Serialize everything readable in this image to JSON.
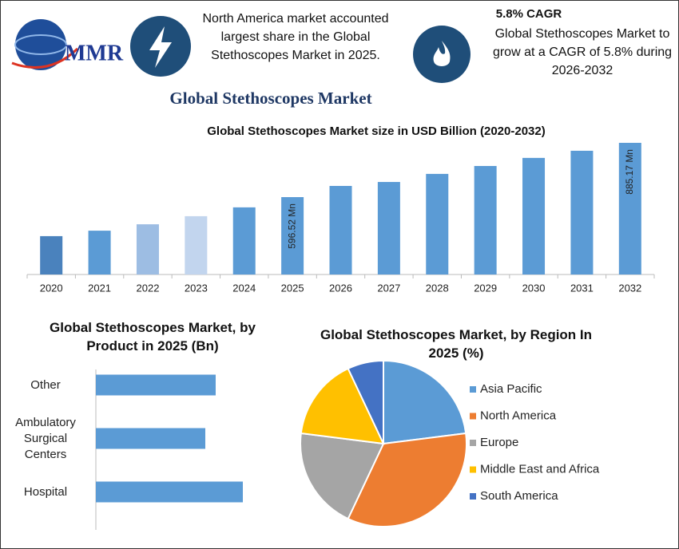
{
  "header": {
    "logo": "MMR",
    "note": "North America market accounted largest share in the Global Stethoscopes Market in 2025.",
    "cagr_title": "5.8% CAGR",
    "cagr_text": "Global Stethoscopes Market to grow at a CAGR of 5.8% during 2026-2032",
    "title": "Global Stethoscopes Market"
  },
  "chart_data": [
    {
      "type": "bar",
      "title": "Global Stethoscopes Market size in USD Billion (2020-2032)",
      "categories": [
        "2020",
        "2021",
        "2022",
        "2023",
        "2024",
        "2025",
        "2026",
        "2027",
        "2028",
        "2029",
        "2030",
        "2031",
        "2032"
      ],
      "values": [
        389,
        418,
        452,
        495,
        542,
        596.52,
        656,
        677,
        720,
        762,
        805,
        843,
        885.17
      ],
      "value_labels": [
        null,
        null,
        null,
        null,
        null,
        "596.52 Mn",
        null,
        null,
        null,
        null,
        null,
        null,
        "885.17 Mn"
      ],
      "colors": [
        "#4a82bd",
        "#5b9bd5",
        "#9dbde3",
        "#c2d5ee",
        "#5b9bd5",
        "#5b9bd5",
        "#5b9bd5",
        "#5b9bd5",
        "#5b9bd5",
        "#5b9bd5",
        "#5b9bd5",
        "#5b9bd5",
        "#5b9bd5"
      ],
      "ylim": [
        185,
        900
      ]
    },
    {
      "type": "bar",
      "orientation": "horizontal",
      "title": "Global Stethoscopes Market, by Product in 2025 (Bn)",
      "categories": [
        "Other",
        "Ambulatory Surgical Centers",
        "Hospital"
      ],
      "values": [
        1.5,
        1.37,
        1.84
      ],
      "color": "#5b9bd5",
      "xlim": [
        0,
        2.5
      ]
    },
    {
      "type": "pie",
      "title": "Global Stethoscopes Market, by Region In 2025 (%)",
      "categories": [
        "Asia Pacific",
        "North America",
        "Europe",
        "Middle East and Africa",
        "South America"
      ],
      "values": [
        23,
        34,
        20,
        16,
        7
      ],
      "colors": [
        "#5b9bd5",
        "#ed7d31",
        "#a5a5a5",
        "#ffc000",
        "#4472c4"
      ]
    }
  ]
}
